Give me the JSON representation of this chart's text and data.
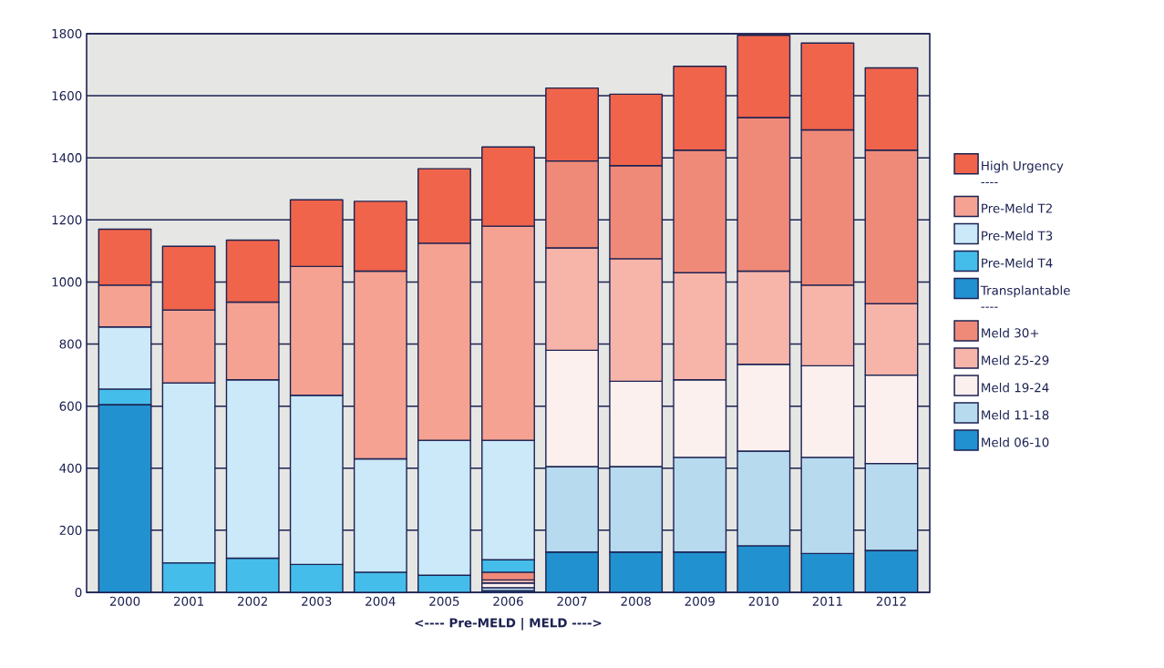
{
  "chart_data": {
    "type": "bar",
    "stacked": true,
    "xlabel": "<---- Pre-MELD      |      MELD ---->",
    "categories": [
      "2000",
      "2001",
      "2002",
      "2003",
      "2004",
      "2005",
      "2006",
      "2007",
      "2008",
      "2009",
      "2010",
      "2011",
      "2012"
    ],
    "series": [
      {
        "name": "Meld 06-10",
        "color": "#2191d0",
        "values": [
          null,
          null,
          null,
          null,
          null,
          null,
          5,
          130,
          130,
          130,
          150,
          125,
          135
        ]
      },
      {
        "name": "Meld 11-18",
        "color": "#b7daef",
        "values": [
          null,
          null,
          null,
          null,
          null,
          null,
          10,
          275,
          275,
          305,
          305,
          310,
          280
        ]
      },
      {
        "name": "Meld 19-24",
        "color": "#fcf0ee",
        "values": [
          null,
          null,
          null,
          null,
          null,
          null,
          15,
          375,
          275,
          250,
          280,
          295,
          285
        ]
      },
      {
        "name": "Meld 25-29",
        "color": "#f7b5aa",
        "values": [
          null,
          null,
          null,
          null,
          null,
          null,
          10,
          330,
          395,
          345,
          300,
          260,
          230
        ]
      },
      {
        "name": "Meld 30+",
        "color": "#f08a78",
        "values": [
          null,
          null,
          null,
          null,
          null,
          null,
          25,
          280,
          300,
          395,
          495,
          500,
          495
        ]
      },
      {
        "name": "Transplantable",
        "color": "#2191d0",
        "values": [
          605,
          null,
          null,
          null,
          null,
          null,
          null,
          null,
          null,
          null,
          null,
          null,
          null
        ]
      },
      {
        "name": "Pre-Meld T4",
        "color": "#45bdea",
        "values": [
          50,
          95,
          110,
          90,
          65,
          55,
          40,
          null,
          null,
          null,
          null,
          null,
          null
        ]
      },
      {
        "name": "Pre-Meld T3",
        "color": "#cbe9f8",
        "values": [
          200,
          580,
          575,
          545,
          365,
          435,
          385,
          null,
          null,
          null,
          null,
          null,
          null
        ]
      },
      {
        "name": "Pre-Meld T2",
        "color": "#f5a293",
        "values": [
          135,
          235,
          250,
          415,
          605,
          635,
          690,
          null,
          null,
          null,
          null,
          null,
          null
        ]
      },
      {
        "name": "High Urgency",
        "color": "#f0644b",
        "values": [
          180,
          205,
          200,
          215,
          225,
          240,
          255,
          235,
          230,
          270,
          265,
          280,
          265
        ]
      }
    ],
    "ylim": [
      0,
      1800
    ],
    "yticks": [
      0,
      200,
      400,
      600,
      800,
      1000,
      1200,
      1400,
      1600,
      1800
    ],
    "grid": "y",
    "legend": "right",
    "annotations": [
      "----",
      "----"
    ]
  }
}
